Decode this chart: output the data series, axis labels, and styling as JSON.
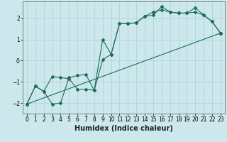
{
  "xlabel": "Humidex (Indice chaleur)",
  "bg_color": "#cce8ec",
  "line_color": "#1f6b5e",
  "grid_color": "#aad0d4",
  "xlim": [
    -0.5,
    23.5
  ],
  "ylim": [
    -2.5,
    2.8
  ],
  "series1_x": [
    0,
    1,
    2,
    3,
    4,
    5,
    6,
    7,
    8,
    9,
    10,
    11,
    12,
    13,
    14,
    15,
    16,
    17,
    18,
    19,
    20,
    21,
    22,
    23
  ],
  "series1_y": [
    -2.05,
    -1.2,
    -1.45,
    -0.75,
    -0.8,
    -0.85,
    -1.35,
    -1.35,
    -1.4,
    0.05,
    0.3,
    1.75,
    1.75,
    1.8,
    2.1,
    2.15,
    2.55,
    2.3,
    2.25,
    2.25,
    2.5,
    2.15,
    1.85,
    1.3
  ],
  "series2_x": [
    0,
    1,
    2,
    3,
    4,
    5,
    6,
    7,
    8,
    9,
    10,
    11,
    12,
    13,
    14,
    15,
    16,
    17,
    18,
    19,
    20,
    21,
    22,
    23
  ],
  "series2_y": [
    -2.05,
    -1.2,
    -1.45,
    -2.05,
    -2.0,
    -0.8,
    -0.7,
    -0.65,
    -1.4,
    1.0,
    0.3,
    1.75,
    1.75,
    1.8,
    2.1,
    2.3,
    2.4,
    2.3,
    2.25,
    2.25,
    2.3,
    2.15,
    1.85,
    1.3
  ],
  "series3_x": [
    0,
    23
  ],
  "series3_y": [
    -2.05,
    1.3
  ],
  "xticks": [
    0,
    1,
    2,
    3,
    4,
    5,
    6,
    7,
    8,
    9,
    10,
    11,
    12,
    13,
    14,
    15,
    16,
    17,
    18,
    19,
    20,
    21,
    22,
    23
  ],
  "yticks": [
    -2,
    -1,
    0,
    1,
    2
  ],
  "tick_fontsize": 5.5,
  "xlabel_fontsize": 7.0,
  "lw": 0.8,
  "ms": 2.0
}
